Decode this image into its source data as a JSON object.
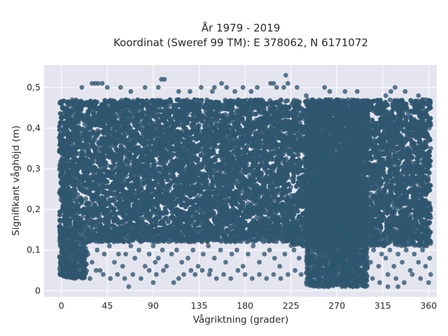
{
  "chart_data": {
    "type": "scatter",
    "title_line1": "År 1979 - 2019",
    "title_line2": "Koordinat (Sweref 99 TM): E 378062, N 6171072",
    "xlabel": "Vågriktning (grader)",
    "ylabel": "Signifikant våghöjd (m)",
    "xlim": [
      -17,
      368
    ],
    "ylim": [
      -0.015,
      0.555
    ],
    "x_ticks": [
      0,
      45,
      90,
      135,
      180,
      225,
      270,
      315,
      360
    ],
    "x_tick_labels": [
      "0",
      "45",
      "90",
      "135",
      "180",
      "225",
      "270",
      "315",
      "360"
    ],
    "y_ticks": [
      0,
      0.1,
      0.2,
      0.3,
      0.4,
      0.5
    ],
    "y_tick_labels": [
      "0",
      "0,1",
      "0,2",
      "0,3",
      "0,4",
      "0,5"
    ],
    "grid": true,
    "colors": {
      "points": "#2f5670",
      "plot_bg": "#e5e5f0",
      "grid": "#ffffff"
    },
    "dense_regions": [
      {
        "x": [
          -2,
          362
        ],
        "y": [
          0.15,
          0.47
        ]
      },
      {
        "x": [
          -2,
          225
        ],
        "y": [
          0.12,
          0.15
        ]
      },
      {
        "x": [
          225,
          362
        ],
        "y": [
          0.11,
          0.15
        ]
      },
      {
        "x": [
          240,
          300
        ],
        "y": [
          0.01,
          0.47
        ]
      },
      {
        "x": [
          -2,
          25
        ],
        "y": [
          0.03,
          0.12
        ]
      }
    ],
    "points": [
      [
        20,
        0.5
      ],
      [
        30,
        0.51
      ],
      [
        33,
        0.51
      ],
      [
        36,
        0.51
      ],
      [
        40,
        0.51
      ],
      [
        45,
        0.5
      ],
      [
        58,
        0.5
      ],
      [
        68,
        0.49
      ],
      [
        82,
        0.5
      ],
      [
        95,
        0.5
      ],
      [
        98,
        0.52
      ],
      [
        101,
        0.52
      ],
      [
        115,
        0.49
      ],
      [
        126,
        0.49
      ],
      [
        137,
        0.5
      ],
      [
        148,
        0.49
      ],
      [
        150,
        0.5
      ],
      [
        157,
        0.51
      ],
      [
        162,
        0.5
      ],
      [
        170,
        0.49
      ],
      [
        178,
        0.5
      ],
      [
        186,
        0.49
      ],
      [
        192,
        0.5
      ],
      [
        205,
        0.51
      ],
      [
        208,
        0.51
      ],
      [
        211,
        0.5
      ],
      [
        218,
        0.5
      ],
      [
        220,
        0.53
      ],
      [
        222,
        0.51
      ],
      [
        231,
        0.5
      ],
      [
        240,
        0.48
      ],
      [
        258,
        0.5
      ],
      [
        263,
        0.49
      ],
      [
        278,
        0.49
      ],
      [
        290,
        0.49
      ],
      [
        318,
        0.48
      ],
      [
        323,
        0.49
      ],
      [
        327,
        0.5
      ],
      [
        337,
        0.49
      ],
      [
        350,
        0.48
      ],
      [
        357,
        0.47
      ],
      [
        1,
        0.45
      ],
      [
        0,
        0.38
      ],
      [
        0,
        0.3
      ],
      [
        1,
        0.22
      ],
      [
        0,
        0.15
      ],
      [
        361,
        0.42
      ],
      [
        362,
        0.35
      ],
      [
        361,
        0.26
      ],
      [
        362,
        0.18
      ],
      [
        362,
        0.12
      ],
      [
        361,
        0.08
      ],
      [
        362,
        0.04
      ],
      [
        26,
        0.09
      ],
      [
        30,
        0.07
      ],
      [
        35,
        0.1
      ],
      [
        38,
        0.05
      ],
      [
        42,
        0.09
      ],
      [
        47,
        0.11
      ],
      [
        52,
        0.07
      ],
      [
        56,
        0.09
      ],
      [
        60,
        0.06
      ],
      [
        63,
        0.09
      ],
      [
        68,
        0.11
      ],
      [
        72,
        0.08
      ],
      [
        76,
        0.1
      ],
      [
        82,
        0.06
      ],
      [
        86,
        0.09
      ],
      [
        90,
        0.11
      ],
      [
        95,
        0.08
      ],
      [
        99,
        0.1
      ],
      [
        103,
        0.06
      ],
      [
        108,
        0.09
      ],
      [
        113,
        0.1
      ],
      [
        118,
        0.07
      ],
      [
        124,
        0.08
      ],
      [
        129,
        0.1
      ],
      [
        134,
        0.06
      ],
      [
        139,
        0.09
      ],
      [
        144,
        0.11
      ],
      [
        150,
        0.08
      ],
      [
        156,
        0.1
      ],
      [
        161,
        0.07
      ],
      [
        167,
        0.09
      ],
      [
        172,
        0.1
      ],
      [
        178,
        0.06
      ],
      [
        183,
        0.09
      ],
      [
        188,
        0.11
      ],
      [
        194,
        0.07
      ],
      [
        199,
        0.09
      ],
      [
        204,
        0.1
      ],
      [
        209,
        0.08
      ],
      [
        214,
        0.06
      ],
      [
        219,
        0.09
      ],
      [
        22,
        0.04
      ],
      [
        28,
        0.03
      ],
      [
        34,
        0.05
      ],
      [
        41,
        0.04
      ],
      [
        48,
        0.03
      ],
      [
        55,
        0.04
      ],
      [
        62,
        0.03
      ],
      [
        70,
        0.04
      ],
      [
        78,
        0.03
      ],
      [
        86,
        0.05
      ],
      [
        93,
        0.04
      ],
      [
        100,
        0.05
      ],
      [
        66,
        0.01
      ],
      [
        90,
        0.02
      ],
      [
        110,
        0.02
      ],
      [
        115,
        0.03
      ],
      [
        120,
        0.04
      ],
      [
        127,
        0.05
      ],
      [
        131,
        0.04
      ],
      [
        138,
        0.05
      ],
      [
        145,
        0.04
      ],
      [
        152,
        0.03
      ],
      [
        159,
        0.04
      ],
      [
        166,
        0.03
      ],
      [
        173,
        0.05
      ],
      [
        180,
        0.04
      ],
      [
        187,
        0.03
      ],
      [
        194,
        0.04
      ],
      [
        201,
        0.03
      ],
      [
        208,
        0.04
      ],
      [
        215,
        0.03
      ],
      [
        222,
        0.04
      ],
      [
        229,
        0.05
      ],
      [
        235,
        0.04
      ],
      [
        92,
        0.07
      ],
      [
        146,
        0.05
      ],
      [
        228,
        0.1
      ],
      [
        233,
        0.08
      ],
      [
        237,
        0.11
      ],
      [
        303,
        0.07
      ],
      [
        306,
        0.1
      ],
      [
        311,
        0.06
      ],
      [
        314,
        0.09
      ],
      [
        318,
        0.08
      ],
      [
        322,
        0.1
      ],
      [
        326,
        0.06
      ],
      [
        330,
        0.09
      ],
      [
        334,
        0.07
      ],
      [
        338,
        0.1
      ],
      [
        342,
        0.05
      ],
      [
        346,
        0.09
      ],
      [
        350,
        0.07
      ],
      [
        354,
        0.1
      ],
      [
        357,
        0.06
      ],
      [
        305,
        0.03
      ],
      [
        312,
        0.02
      ],
      [
        320,
        0.04
      ],
      [
        328,
        0.03
      ],
      [
        336,
        0.02
      ],
      [
        344,
        0.04
      ],
      [
        352,
        0.03
      ],
      [
        360,
        0.02
      ],
      [
        252,
        0.01
      ],
      [
        262,
        0.01
      ],
      [
        275,
        0.01
      ],
      [
        286,
        0.01
      ],
      [
        298,
        0.01
      ],
      [
        320,
        0.01
      ],
      [
        330,
        0.01
      ]
    ]
  }
}
